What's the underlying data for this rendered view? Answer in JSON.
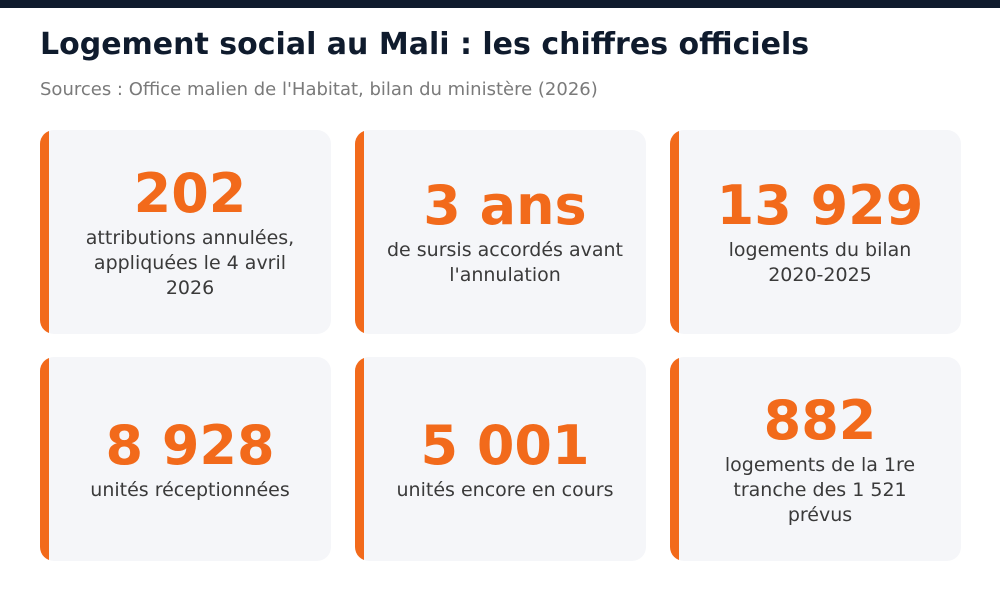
{
  "header": {
    "title": "Logement social au Mali : les chiffres officiels",
    "subtitle": "Sources : Office malien de l'Habitat, bilan du ministère (2026)"
  },
  "colors": {
    "accent": "#f26a1b",
    "title": "#0f1b2d",
    "card_background": "#f5f6f9"
  },
  "stats": [
    {
      "value": "202",
      "label": "attributions annulées, appliquées le 4 avril 2026"
    },
    {
      "value": "3 ans",
      "label": "de sursis accordés avant l'annulation"
    },
    {
      "value": "13 929",
      "label": "logements du bilan 2020-2025"
    },
    {
      "value": "8 928",
      "label": "unités réceptionnées"
    },
    {
      "value": "5 001",
      "label": "unités encore en cours"
    },
    {
      "value": "882",
      "label": "logements de la 1re tranche des 1 521 prévus"
    }
  ]
}
